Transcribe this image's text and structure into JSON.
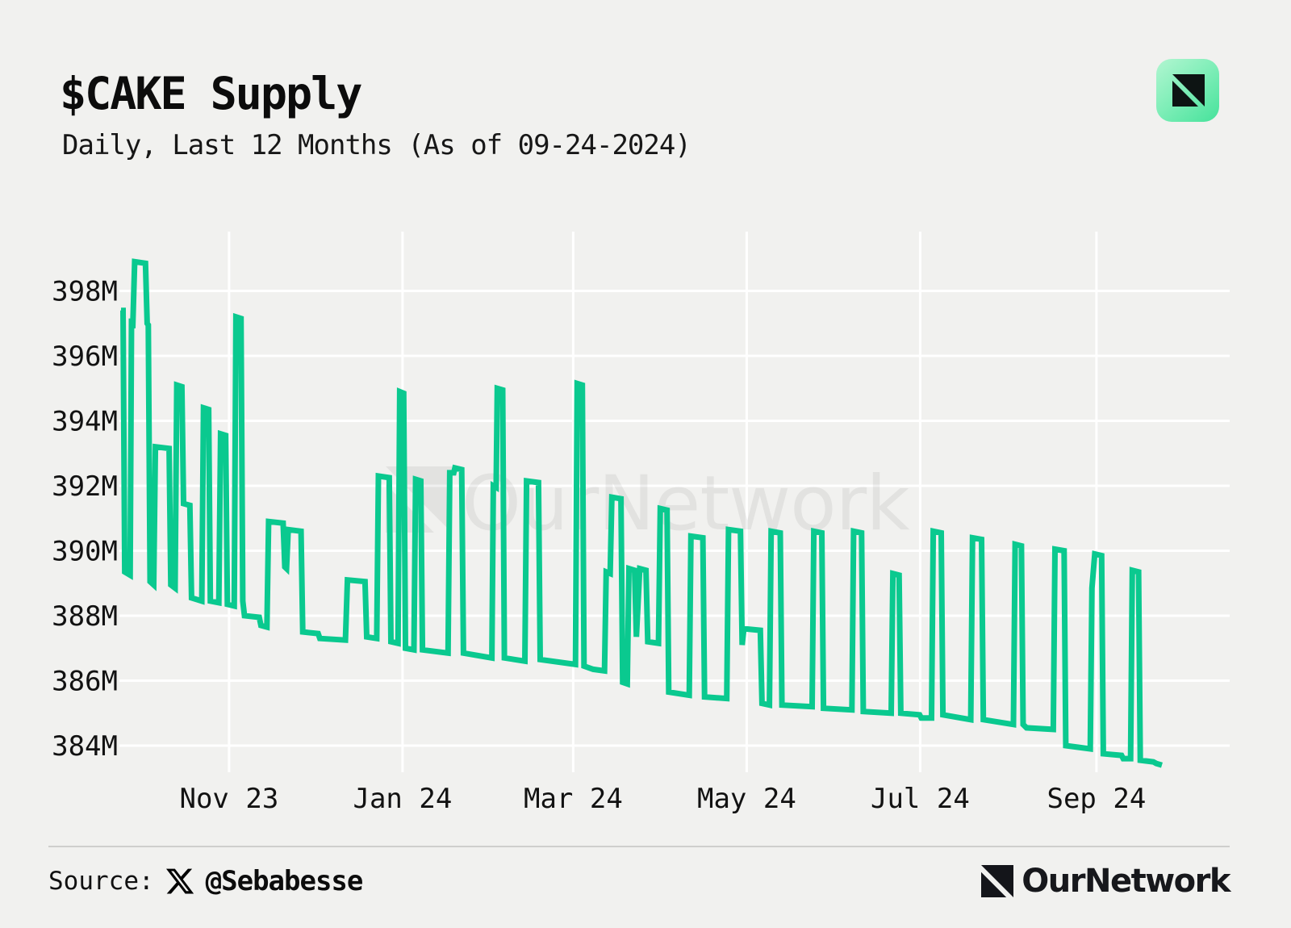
{
  "header": {
    "title": "$CAKE Supply",
    "subtitle": "Daily, Last 12 Months (As of 09-24-2024)"
  },
  "brand": {
    "app_icon_name": "ournetwork-logo",
    "watermark_text": "OurNetwork",
    "footer_wordmark": "OurNetwork"
  },
  "footer": {
    "source_label": "Source:",
    "source_icon_name": "x-logo",
    "source_handle": "@Sebabesse"
  },
  "colors": {
    "background": "#f1f1ef",
    "line_green": "#0ac98f",
    "gridline": "#ffffff",
    "icon_gradient_start": "#b2f6d1",
    "icon_gradient_end": "#46e29b",
    "text": "#0e0e0e"
  },
  "chart_data": {
    "type": "line",
    "title": "$CAKE Supply",
    "subtitle": "Daily, Last 12 Months (As of 09-24-2024)",
    "unit": "M = millions of CAKE tokens",
    "line_color": "#0ac98f",
    "grid": true,
    "legend_position": "none",
    "ylim": [
      383.2,
      399.5
    ],
    "y_ticks": [
      {
        "value": 398,
        "label": "398M"
      },
      {
        "value": 396,
        "label": "396M"
      },
      {
        "value": 394,
        "label": "394M"
      },
      {
        "value": 392,
        "label": "392M"
      },
      {
        "value": 390,
        "label": "390M"
      },
      {
        "value": 388,
        "label": "388M"
      },
      {
        "value": 386,
        "label": "386M"
      },
      {
        "value": 384,
        "label": "384M"
      }
    ],
    "x_axis": {
      "range_days": [
        0,
        366
      ],
      "start_date": "2023-09-24",
      "end_date": "2024-09-24"
    },
    "x_ticks": [
      {
        "label": "Nov 23",
        "day": 38
      },
      {
        "label": "Jan 24",
        "day": 99
      },
      {
        "label": "Mar 24",
        "day": 159
      },
      {
        "label": "May 24",
        "day": 220
      },
      {
        "label": "Jul 24",
        "day": 281
      },
      {
        "label": "Sep 24",
        "day": 343
      }
    ],
    "series": [
      {
        "name": "CAKE total supply (millions)",
        "points": [
          [
            0,
            397.4
          ],
          [
            0.7,
            397.4
          ],
          [
            1.3,
            389.35
          ],
          [
            3.2,
            389.25
          ],
          [
            3.7,
            397.15
          ],
          [
            4.1,
            396.85
          ],
          [
            4.8,
            398.9
          ],
          [
            8.6,
            398.85
          ],
          [
            9.2,
            397.0
          ],
          [
            9.6,
            396.95
          ],
          [
            10.2,
            389.05
          ],
          [
            11.5,
            388.95
          ],
          [
            12.1,
            393.2
          ],
          [
            16.9,
            393.15
          ],
          [
            17.5,
            388.95
          ],
          [
            19.0,
            388.85
          ],
          [
            19.6,
            395.1
          ],
          [
            21.4,
            395.05
          ],
          [
            22.0,
            391.45
          ],
          [
            24.2,
            391.4
          ],
          [
            24.8,
            388.55
          ],
          [
            28.4,
            388.45
          ],
          [
            29.0,
            394.4
          ],
          [
            30.8,
            394.35
          ],
          [
            31.4,
            388.45
          ],
          [
            34.4,
            388.4
          ],
          [
            35.0,
            393.6
          ],
          [
            36.8,
            393.55
          ],
          [
            37.4,
            388.35
          ],
          [
            39.8,
            388.3
          ],
          [
            40.4,
            397.2
          ],
          [
            42.2,
            397.15
          ],
          [
            42.8,
            388.45
          ],
          [
            43.4,
            388.0
          ],
          [
            48.6,
            387.95
          ],
          [
            49.2,
            387.7
          ],
          [
            51.3,
            387.65
          ],
          [
            51.9,
            390.9
          ],
          [
            57.0,
            390.85
          ],
          [
            57.6,
            389.5
          ],
          [
            58.2,
            389.45
          ],
          [
            58.8,
            390.65
          ],
          [
            63.3,
            390.6
          ],
          [
            63.9,
            387.5
          ],
          [
            69.3,
            387.45
          ],
          [
            69.9,
            387.3
          ],
          [
            78.9,
            387.25
          ],
          [
            79.6,
            389.1
          ],
          [
            85.8,
            389.05
          ],
          [
            86.4,
            387.35
          ],
          [
            89.9,
            387.3
          ],
          [
            90.5,
            392.3
          ],
          [
            94.3,
            392.25
          ],
          [
            94.9,
            387.2
          ],
          [
            97.4,
            387.15
          ],
          [
            98.0,
            394.9
          ],
          [
            99.4,
            394.85
          ],
          [
            100.0,
            387.0
          ],
          [
            103.0,
            386.95
          ],
          [
            103.6,
            392.2
          ],
          [
            105.4,
            392.15
          ],
          [
            106.0,
            386.95
          ],
          [
            115.0,
            386.85
          ],
          [
            115.6,
            392.4
          ],
          [
            117.0,
            392.4
          ],
          [
            117.4,
            392.55
          ],
          [
            119.8,
            392.5
          ],
          [
            120.4,
            386.85
          ],
          [
            130.4,
            386.7
          ],
          [
            130.9,
            392.0
          ],
          [
            131.9,
            391.95
          ],
          [
            132.3,
            395.0
          ],
          [
            134.2,
            394.95
          ],
          [
            134.8,
            386.7
          ],
          [
            142.0,
            386.6
          ],
          [
            142.6,
            392.15
          ],
          [
            146.8,
            392.1
          ],
          [
            147.4,
            386.65
          ],
          [
            159.8,
            386.5
          ],
          [
            160.4,
            395.15
          ],
          [
            162.2,
            395.1
          ],
          [
            162.8,
            386.45
          ],
          [
            166.0,
            386.35
          ],
          [
            170.0,
            386.3
          ],
          [
            170.6,
            389.35
          ],
          [
            172.0,
            389.3
          ],
          [
            172.6,
            391.65
          ],
          [
            175.8,
            391.6
          ],
          [
            176.4,
            385.95
          ],
          [
            178.0,
            385.9
          ],
          [
            178.6,
            389.45
          ],
          [
            180.6,
            389.4
          ],
          [
            181.2,
            387.35
          ],
          [
            182.4,
            389.45
          ],
          [
            184.6,
            389.4
          ],
          [
            185.2,
            387.2
          ],
          [
            189.0,
            387.15
          ],
          [
            189.6,
            391.3
          ],
          [
            192.0,
            391.25
          ],
          [
            192.6,
            385.65
          ],
          [
            199.8,
            385.55
          ],
          [
            200.4,
            390.45
          ],
          [
            204.6,
            390.4
          ],
          [
            205.2,
            385.5
          ],
          [
            213.0,
            385.45
          ],
          [
            213.6,
            390.65
          ],
          [
            217.8,
            390.6
          ],
          [
            218.4,
            387.1
          ],
          [
            219.0,
            387.6
          ],
          [
            224.8,
            387.55
          ],
          [
            225.4,
            385.3
          ],
          [
            228.0,
            385.25
          ],
          [
            228.6,
            390.6
          ],
          [
            231.8,
            390.55
          ],
          [
            232.4,
            385.25
          ],
          [
            243.0,
            385.2
          ],
          [
            243.6,
            390.6
          ],
          [
            246.4,
            390.55
          ],
          [
            247.0,
            385.15
          ],
          [
            257.0,
            385.1
          ],
          [
            257.6,
            390.6
          ],
          [
            260.4,
            390.55
          ],
          [
            261.0,
            385.05
          ],
          [
            270.8,
            385.0
          ],
          [
            271.4,
            389.3
          ],
          [
            273.6,
            389.25
          ],
          [
            274.2,
            385.0
          ],
          [
            280.8,
            384.95
          ],
          [
            281.4,
            384.85
          ],
          [
            285.0,
            384.85
          ],
          [
            285.6,
            390.6
          ],
          [
            288.4,
            390.55
          ],
          [
            289.0,
            384.95
          ],
          [
            298.8,
            384.8
          ],
          [
            299.4,
            390.4
          ],
          [
            302.6,
            390.35
          ],
          [
            303.2,
            384.8
          ],
          [
            313.8,
            384.65
          ],
          [
            314.4,
            390.2
          ],
          [
            316.6,
            390.15
          ],
          [
            317.2,
            384.65
          ],
          [
            318.4,
            384.55
          ],
          [
            327.8,
            384.5
          ],
          [
            328.4,
            390.05
          ],
          [
            331.6,
            390.0
          ],
          [
            332.2,
            384.0
          ],
          [
            340.8,
            383.9
          ],
          [
            341.4,
            388.85
          ],
          [
            342.4,
            389.9
          ],
          [
            344.8,
            389.85
          ],
          [
            345.4,
            383.75
          ],
          [
            351.8,
            383.7
          ],
          [
            352.4,
            383.6
          ],
          [
            355.0,
            383.6
          ],
          [
            355.6,
            389.4
          ],
          [
            357.8,
            389.35
          ],
          [
            358.4,
            383.55
          ],
          [
            363.0,
            383.5
          ],
          [
            364.0,
            383.45
          ],
          [
            366,
            383.4
          ]
        ]
      }
    ]
  }
}
